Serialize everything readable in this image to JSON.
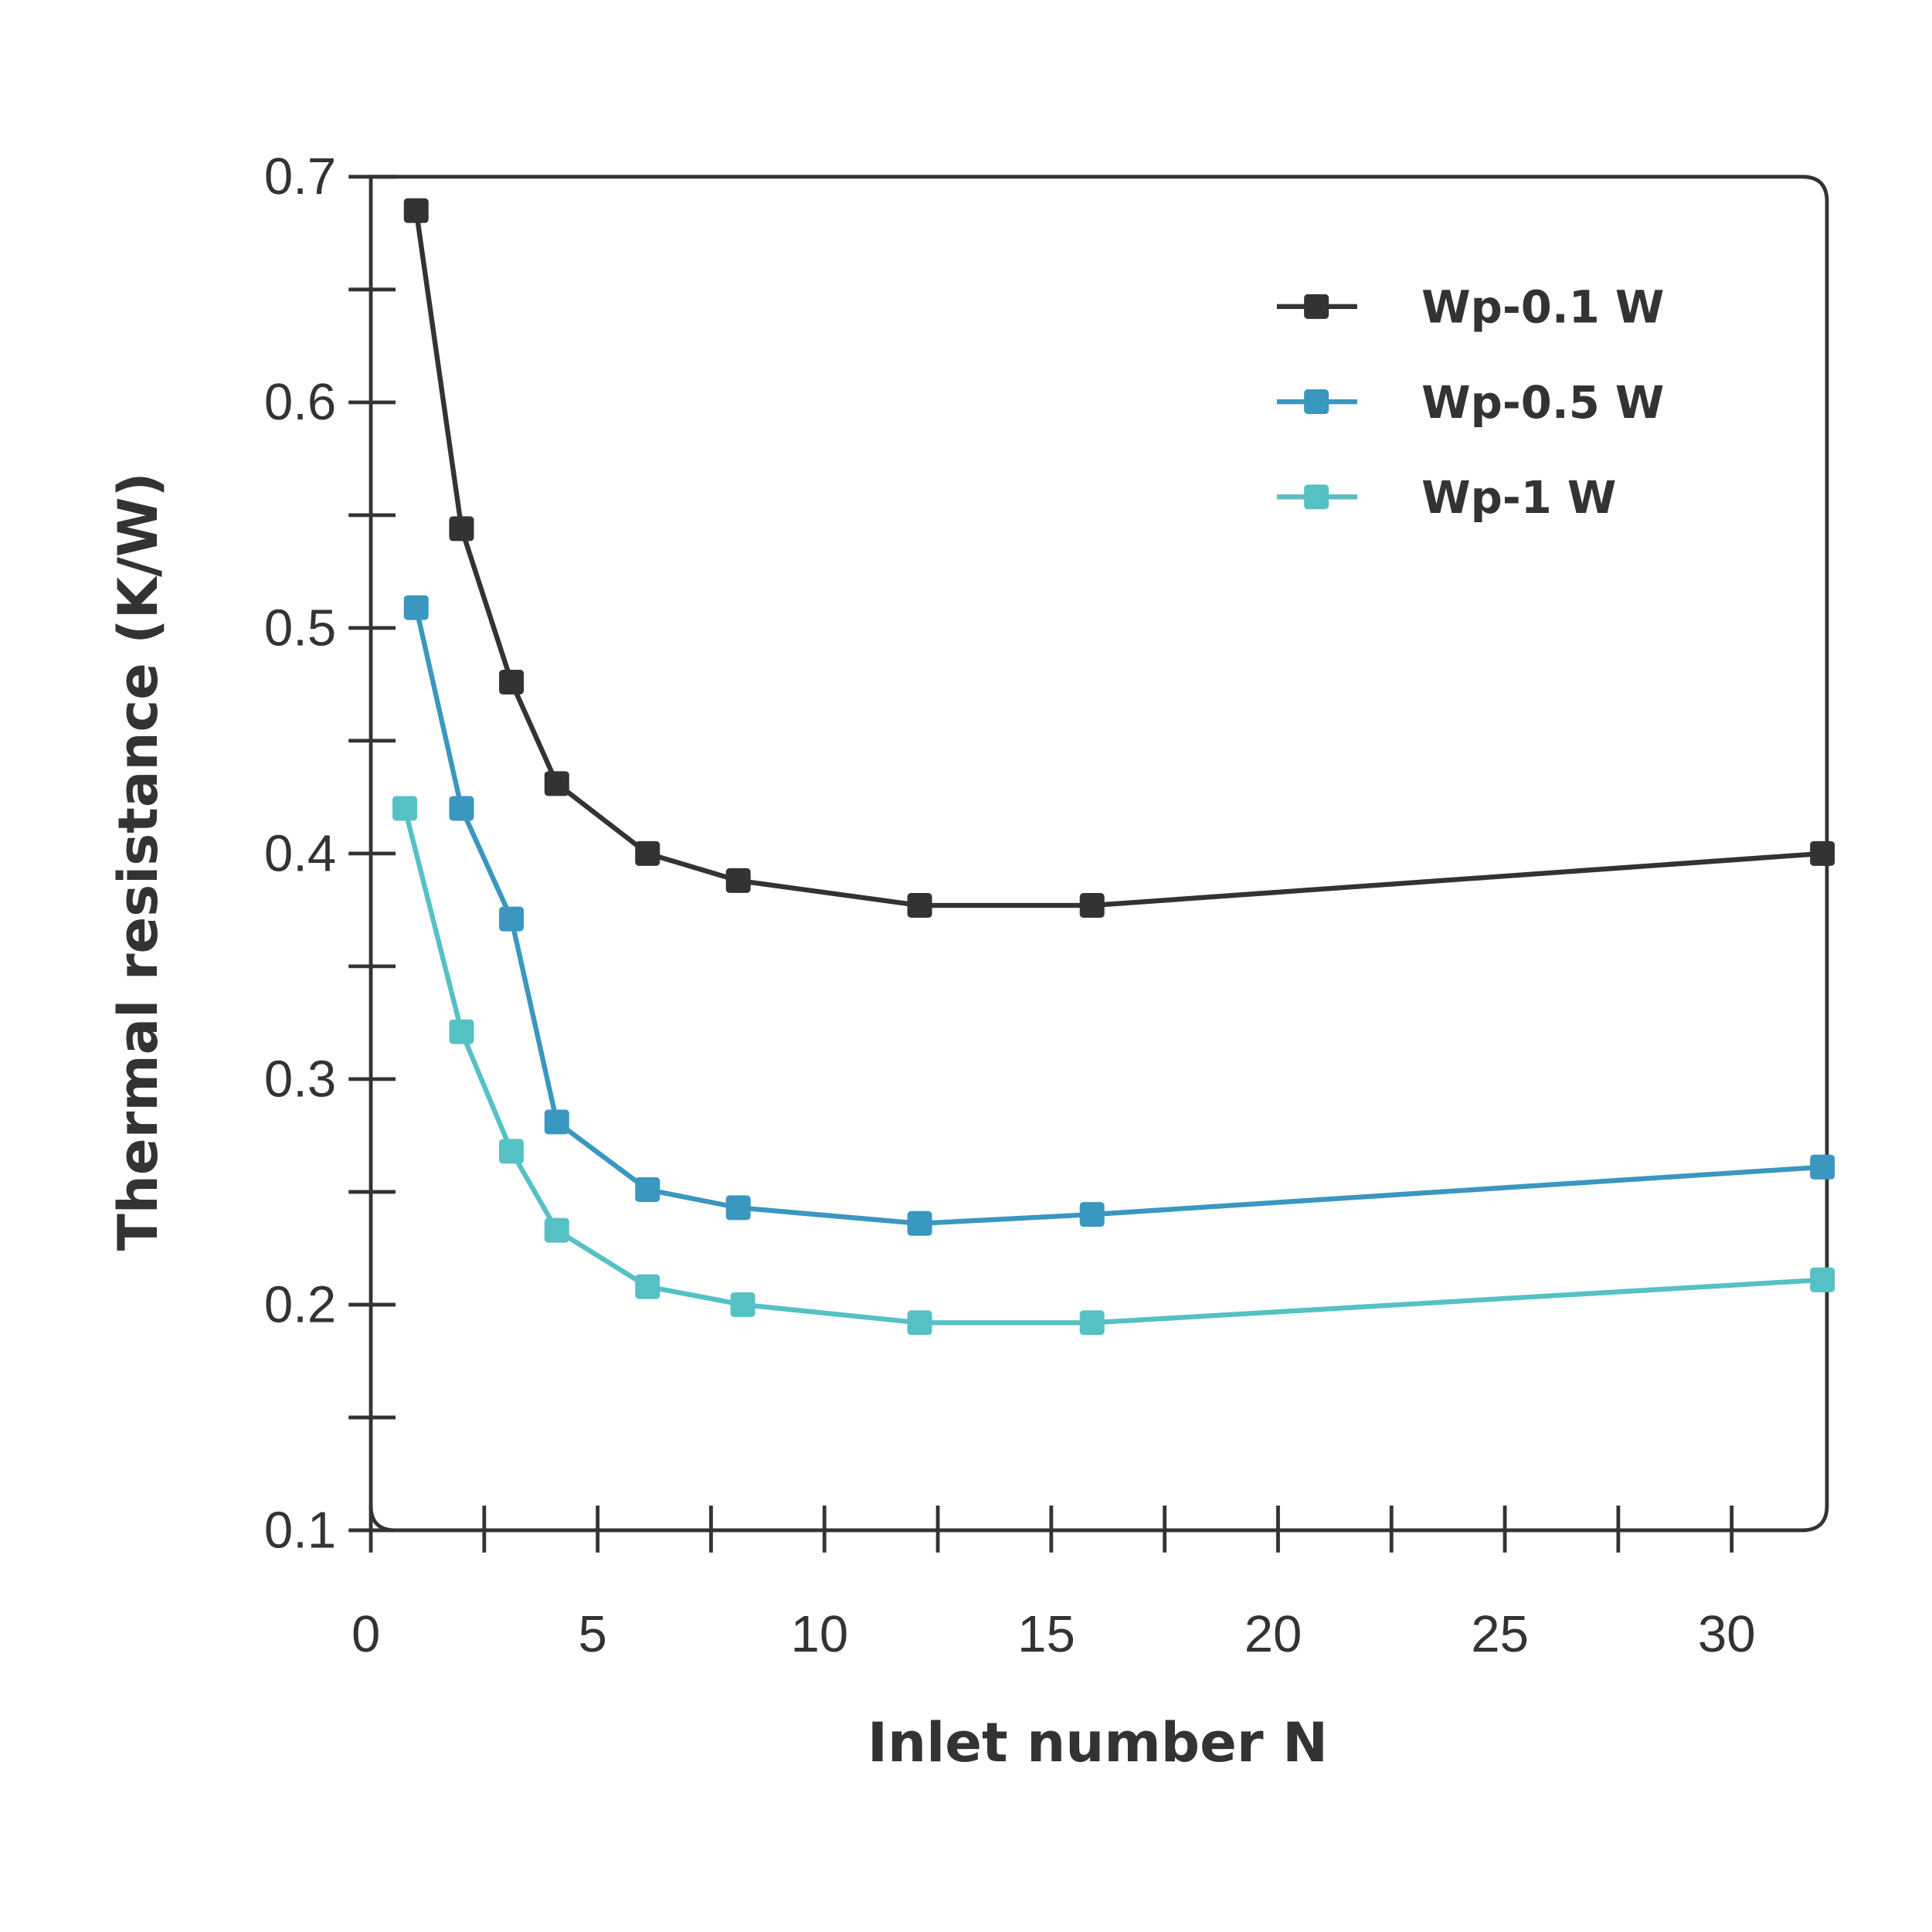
{
  "chart_data": {
    "type": "line",
    "x_label": "Inlet number N",
    "y_label": "Thermal resistance (K/W)",
    "xlim": [
      0,
      32.1
    ],
    "ylim": [
      0.1,
      0.7
    ],
    "xticks": [
      0,
      5,
      10,
      15,
      20,
      25,
      30
    ],
    "x_minor_ticks": [
      2.5,
      7.5,
      12.5,
      17.5,
      22.5,
      27.5
    ],
    "yticks": [
      0.1,
      0.2,
      0.3,
      0.4,
      0.5,
      0.6,
      0.7
    ],
    "y_minor_ticks": [
      0.15,
      0.25,
      0.35,
      0.45,
      0.55,
      0.65
    ],
    "legend": "upper right",
    "series": [
      {
        "name": "Wp-0.1 W",
        "color": "#333333",
        "x": [
          1,
          2,
          3.1,
          4.1,
          6.1,
          8.1,
          12.1,
          15.9,
          32
        ],
        "values": [
          0.685,
          0.544,
          0.476,
          0.431,
          0.4,
          0.388,
          0.377,
          0.377,
          0.4
        ]
      },
      {
        "name": "Wp-0.5 W",
        "color": "#3a97c0",
        "x": [
          1,
          2,
          3.1,
          4.1,
          6.1,
          8.1,
          12.1,
          15.9,
          32
        ],
        "values": [
          0.509,
          0.42,
          0.371,
          0.281,
          0.251,
          0.243,
          0.236,
          0.24,
          0.261
        ]
      },
      {
        "name": "Wp-1 W",
        "color": "#56c1c4",
        "x": [
          0.75,
          2,
          3.1,
          4.1,
          6.1,
          8.2,
          12.1,
          15.9,
          32
        ],
        "values": [
          0.42,
          0.321,
          0.268,
          0.233,
          0.208,
          0.2,
          0.192,
          0.192,
          0.211
        ]
      }
    ]
  }
}
